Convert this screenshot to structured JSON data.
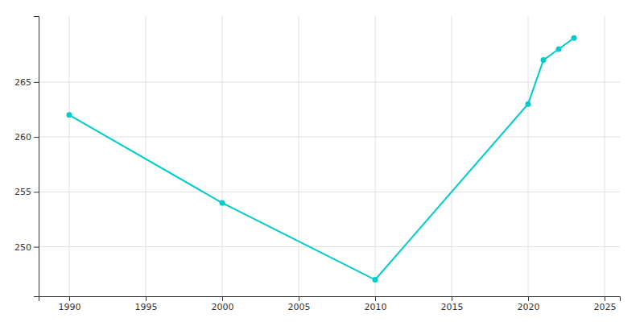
{
  "chart_data": {
    "type": "line",
    "x": [
      1990,
      2000,
      2010,
      2020,
      2021,
      2022,
      2023
    ],
    "values": [
      262,
      254,
      247,
      263,
      267,
      268,
      269
    ],
    "color": "#00CCCC",
    "marker": "circle",
    "xlim": [
      1988,
      2026
    ],
    "ylim": [
      245.5,
      271
    ],
    "xticks": [
      1990,
      1995,
      2000,
      2005,
      2010,
      2015,
      2020,
      2025
    ],
    "yticks": [
      250,
      255,
      260,
      265
    ],
    "grid": true
  }
}
